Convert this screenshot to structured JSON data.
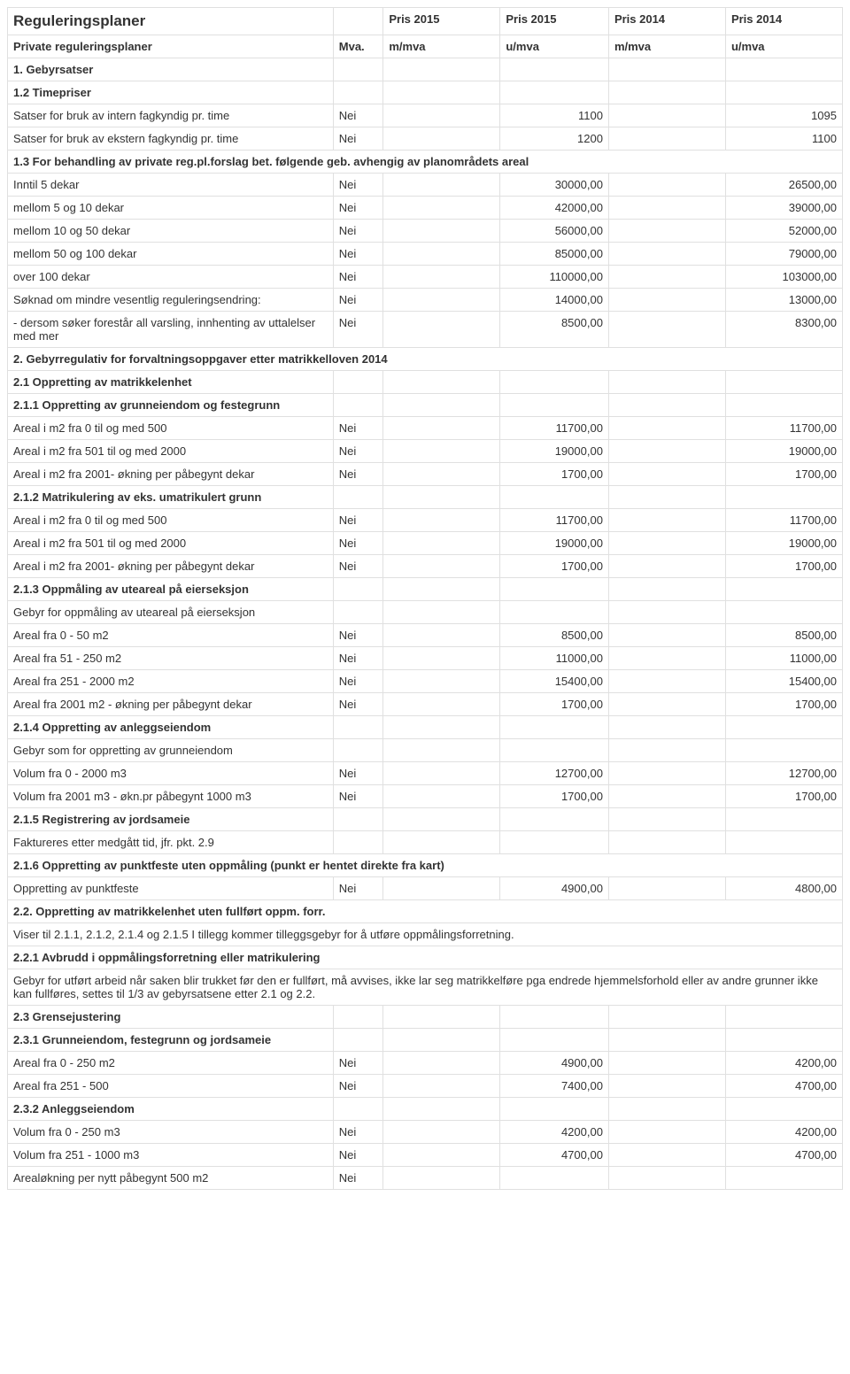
{
  "header": {
    "title": "Reguleringsplaner",
    "c2": "Pris 2015",
    "c3": "Pris 2015",
    "c4": "Pris 2014",
    "c5": "Pris 2014",
    "sub1": "Private reguleringsplaner",
    "mva": "Mva.",
    "s2": "m/mva",
    "s3": "u/mva",
    "s4": "m/mva",
    "s5": "u/mva"
  },
  "sec": {
    "s1": "1. Gebyrsatser",
    "s12": "1.2 Timepriser",
    "s13": "1.3 For behandling av private reg.pl.forslag bet. følgende geb. avhengig av planområdets areal",
    "s2": "2. Gebyrregulativ for forvaltningsoppgaver etter matrikkelloven 2014",
    "s21": "2.1 Oppretting av matrikkelenhet",
    "s211": "2.1.1 Oppretting av grunneiendom og festegrunn",
    "s212": "2.1.2 Matrikulering av eks. umatrikulert grunn",
    "s213": "2.1.3 Oppmåling av uteareal på eierseksjon",
    "s214": "2.1.4 Oppretting av anleggseiendom",
    "s215": "2.1.5 Registrering av jordsameie",
    "s216": "2.1.6 Oppretting av punktfeste uten oppmåling (punkt er hentet direkte fra kart)",
    "s22": "2.2. Oppretting av matrikkelenhet uten fullført oppm. forr.",
    "s221": "2.2.1 Avbrudd i oppmålingsforretning eller matrikulering",
    "s23": "2.3 Grensejustering",
    "s231": "2.3.1 Grunneiendom, festegrunn og jordsameie",
    "s232": "2.3.2 Anleggseiendom"
  },
  "r": {
    "intern": {
      "d": "Satser for bruk av intern fagkyndig pr. time",
      "m": "Nei",
      "v3": "1100",
      "v5": "1095"
    },
    "ekstern": {
      "d": "Satser for bruk av ekstern fagkyndig pr. time",
      "m": "Nei",
      "v3": "1200",
      "v5": "1100"
    },
    "d1": {
      "d": "Inntil 5 dekar",
      "m": "Nei",
      "v3": "30000,00",
      "v5": "26500,00"
    },
    "d2": {
      "d": "mellom 5 og 10 dekar",
      "m": "Nei",
      "v3": "42000,00",
      "v5": "39000,00"
    },
    "d3": {
      "d": "mellom 10 og 50 dekar",
      "m": "Nei",
      "v3": "56000,00",
      "v5": "52000,00"
    },
    "d4": {
      "d": "mellom 50 og 100 dekar",
      "m": "Nei",
      "v3": "85000,00",
      "v5": "79000,00"
    },
    "d5": {
      "d": "over 100 dekar",
      "m": "Nei",
      "v3": "110000,00",
      "v5": "103000,00"
    },
    "d6": {
      "d": "Søknad om mindre vesentlig reguleringsendring:",
      "m": "Nei",
      "v3": "14000,00",
      "v5": "13000,00"
    },
    "d7": {
      "d": " - dersom søker forestår all varsling, innhenting av uttalelser med mer",
      "m": "Nei",
      "v3": "8500,00",
      "v5": "8300,00"
    },
    "a1": {
      "d": "Areal i m2 fra 0 til og med 500",
      "m": "Nei",
      "v3": "11700,00",
      "v5": "11700,00"
    },
    "a2": {
      "d": "Areal i m2 fra 501 til og med 2000",
      "m": "Nei",
      "v3": "19000,00",
      "v5": "19000,00"
    },
    "a3": {
      "d": "Areal i m2 fra 2001- økning per påbegynt dekar",
      "m": "Nei",
      "v3": "1700,00",
      "v5": "1700,00"
    },
    "b1": {
      "d": "Areal i m2 fra 0 til og med 500",
      "m": "Nei",
      "v3": "11700,00",
      "v5": "11700,00"
    },
    "b2": {
      "d": "Areal i m2 fra 501 til og med 2000",
      "m": "Nei",
      "v3": "19000,00",
      "v5": "19000,00"
    },
    "b3": {
      "d": "Areal i m2 fra 2001- økning per påbegynt dekar",
      "m": "Nei",
      "v3": "1700,00",
      "v5": "1700,00"
    },
    "gopp": {
      "d": "Gebyr for oppmåling av uteareal på eierseksjon"
    },
    "c1": {
      "d": "Areal fra 0 - 50 m2",
      "m": "Nei",
      "v3": "8500,00",
      "v5": "8500,00"
    },
    "c2": {
      "d": "Areal fra 51 - 250 m2",
      "m": "Nei",
      "v3": "11000,00",
      "v5": "11000,00"
    },
    "c3": {
      "d": "Areal fra 251 - 2000 m2",
      "m": "Nei",
      "v3": "15400,00",
      "v5": "15400,00"
    },
    "c4": {
      "d": "Areal fra 2001 m2 - økning per påbegynt dekar",
      "m": "Nei",
      "v3": "1700,00",
      "v5": "1700,00"
    },
    "ggrunn": {
      "d": "Gebyr som for oppretting av grunneiendom"
    },
    "v1": {
      "d": "Volum fra 0 - 2000 m3",
      "m": "Nei",
      "v3": "12700,00",
      "v5": "12700,00"
    },
    "v2": {
      "d": "Volum fra 2001 m3 - økn.pr påbegynt 1000 m3",
      "m": "Nei",
      "v3": "1700,00",
      "v5": "1700,00"
    },
    "fakt": {
      "d": "Faktureres etter medgått tid, jfr. pkt. 2.9"
    },
    "pf": {
      "d": "Oppretting av punktfeste",
      "m": "Nei",
      "v3": "4900,00",
      "v5": "4800,00"
    },
    "vis": {
      "d": "Viser til 2.1.1, 2.1.2, 2.1.4 og 2.1.5 I tillegg kommer tilleggsgebyr for å utføre oppmålingsforretning."
    },
    "avb": {
      "d": "Gebyr for utført arbeid når saken blir trukket før den er fullført, må avvises, ikke lar seg matrikkelføre pga endrede hjemmelsforhold eller av andre grunner ikke kan fullføres, settes til 1/3 av gebyrsatsene etter 2.1 og 2.2."
    },
    "g1": {
      "d": "Areal fra 0 - 250 m2",
      "m": "Nei",
      "v3": "4900,00",
      "v5": "4200,00"
    },
    "g2": {
      "d": "Areal fra 251 - 500",
      "m": "Nei",
      "v3": "7400,00",
      "v5": "4700,00"
    },
    "an1": {
      "d": "Volum fra 0 - 250 m3",
      "m": "Nei",
      "v3": "4200,00",
      "v5": "4200,00"
    },
    "an2": {
      "d": "Volum fra 251 - 1000 m3",
      "m": "Nei",
      "v3": "4700,00",
      "v5": "4700,00"
    },
    "an3": {
      "d": "Arealøkning per nytt påbegynt 500 m2",
      "m": "Nei"
    }
  }
}
